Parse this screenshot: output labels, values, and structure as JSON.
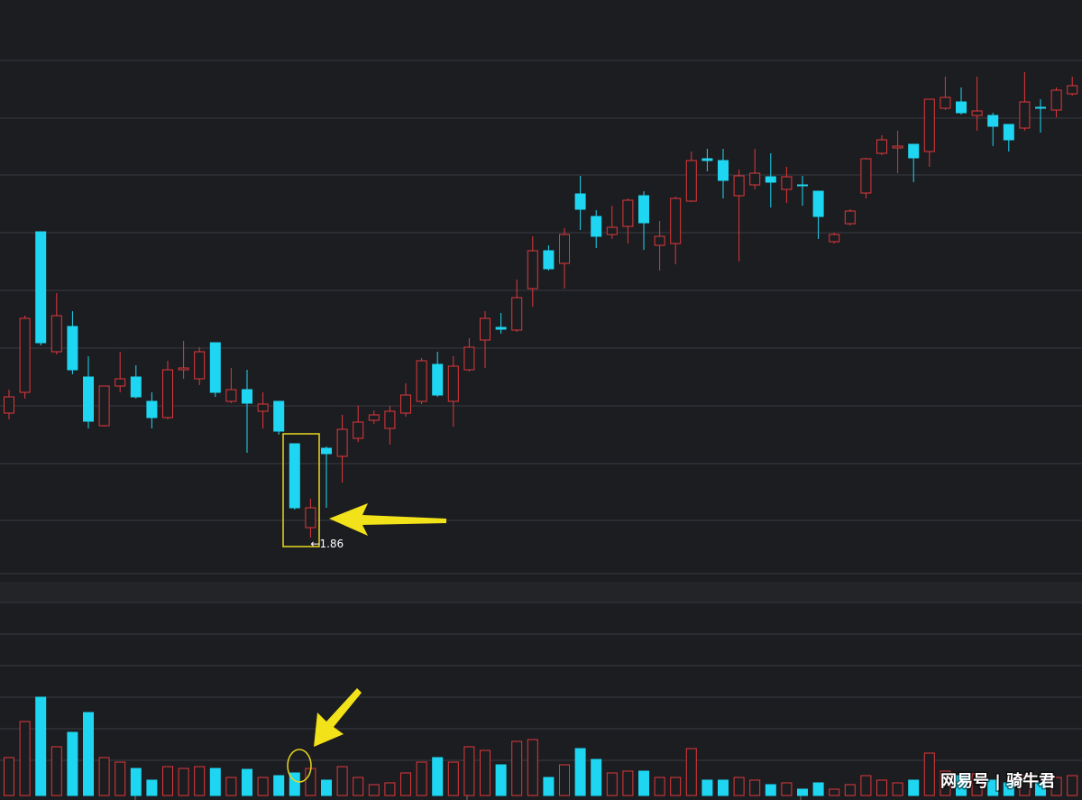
{
  "chart_data": [
    {
      "type": "candlestick",
      "open": [
        2.136,
        2.182,
        2.538,
        2.272,
        2.328,
        2.216,
        2.108,
        2.196,
        2.216,
        2.162,
        2.126,
        2.232,
        2.212,
        2.292,
        2.162,
        2.188,
        2.14,
        2.162,
        2.068,
        1.882,
        2.058,
        2.04,
        2.08,
        2.12,
        2.102,
        2.136,
        2.162,
        2.244,
        2.162,
        2.232,
        2.298,
        2.326,
        2.32,
        2.412,
        2.496,
        2.468,
        2.622,
        2.572,
        2.532,
        2.55,
        2.618,
        2.508,
        2.512,
        2.606,
        2.7,
        2.696,
        2.618,
        2.642,
        2.66,
        2.632,
        2.642,
        2.628,
        2.516,
        2.556,
        2.624,
        2.712,
        2.724,
        2.732,
        2.716,
        2.812,
        2.826,
        2.796,
        2.796,
        2.776,
        2.768,
        2.814,
        2.808,
        2.844
      ],
      "high": [
        2.188,
        2.352,
        2.538,
        2.402,
        2.362,
        2.262,
        2.196,
        2.272,
        2.242,
        2.182,
        2.252,
        2.296,
        2.282,
        2.292,
        2.236,
        2.232,
        2.182,
        2.162,
        2.068,
        1.946,
        2.062,
        2.132,
        2.152,
        2.142,
        2.152,
        2.202,
        2.258,
        2.272,
        2.262,
        2.302,
        2.362,
        2.358,
        2.432,
        2.528,
        2.508,
        2.546,
        2.662,
        2.586,
        2.596,
        2.612,
        2.628,
        2.562,
        2.616,
        2.716,
        2.722,
        2.722,
        2.676,
        2.722,
        2.712,
        2.682,
        2.662,
        2.628,
        2.536,
        2.588,
        2.702,
        2.752,
        2.762,
        2.732,
        2.832,
        2.882,
        2.858,
        2.882,
        2.802,
        2.776,
        2.892,
        2.832,
        2.858,
        2.882
      ],
      "low": [
        2.122,
        2.168,
        2.286,
        2.266,
        2.222,
        2.102,
        2.106,
        2.182,
        2.168,
        2.102,
        2.122,
        2.212,
        2.198,
        2.172,
        2.158,
        2.048,
        2.102,
        2.088,
        1.922,
        1.86,
        1.926,
        1.982,
        2.072,
        2.112,
        2.066,
        2.128,
        2.156,
        2.172,
        2.106,
        2.228,
        2.236,
        2.312,
        2.316,
        2.372,
        2.452,
        2.412,
        2.542,
        2.502,
        2.522,
        2.512,
        2.498,
        2.452,
        2.466,
        2.604,
        2.672,
        2.612,
        2.472,
        2.632,
        2.592,
        2.602,
        2.596,
        2.522,
        2.512,
        2.552,
        2.612,
        2.708,
        2.668,
        2.648,
        2.682,
        2.808,
        2.798,
        2.762,
        2.728,
        2.716,
        2.762,
        2.758,
        2.792,
        2.84
      ],
      "close": [
        2.172,
        2.346,
        2.292,
        2.352,
        2.232,
        2.118,
        2.196,
        2.212,
        2.172,
        2.126,
        2.232,
        2.236,
        2.272,
        2.182,
        2.188,
        2.158,
        2.156,
        2.096,
        1.926,
        1.926,
        2.046,
        2.1,
        2.116,
        2.132,
        2.14,
        2.176,
        2.252,
        2.176,
        2.24,
        2.282,
        2.346,
        2.322,
        2.392,
        2.496,
        2.456,
        2.532,
        2.588,
        2.528,
        2.548,
        2.608,
        2.558,
        2.528,
        2.612,
        2.696,
        2.696,
        2.652,
        2.662,
        2.668,
        2.648,
        2.66,
        2.64,
        2.572,
        2.532,
        2.584,
        2.7,
        2.742,
        2.728,
        2.702,
        2.832,
        2.836,
        2.802,
        2.806,
        2.772,
        2.742,
        2.826,
        2.812,
        2.852,
        2.862
      ],
      "ylim": [
        1.78,
        3.052
      ],
      "up_color": "#e0383a",
      "down_color": "#1ed6f2",
      "min_label": "←1.86",
      "watermark": "网易号 | 骑牛君"
    },
    {
      "type": "bar",
      "values": [
        42,
        82,
        109,
        54,
        70,
        92,
        42,
        37,
        30,
        17,
        32,
        30,
        32,
        30,
        20,
        29,
        20,
        22,
        25,
        30,
        17,
        32,
        20,
        12,
        14,
        25,
        37,
        42,
        37,
        54,
        50,
        34,
        60,
        62,
        20,
        34,
        52,
        40,
        25,
        27,
        27,
        20,
        20,
        52,
        17,
        17,
        20,
        17,
        12,
        14,
        7,
        14,
        7,
        12,
        22,
        17,
        14,
        17,
        47,
        27,
        22,
        24,
        17,
        14,
        22,
        14,
        20,
        22
      ],
      "ylim": [
        0,
        230
      ]
    }
  ]
}
